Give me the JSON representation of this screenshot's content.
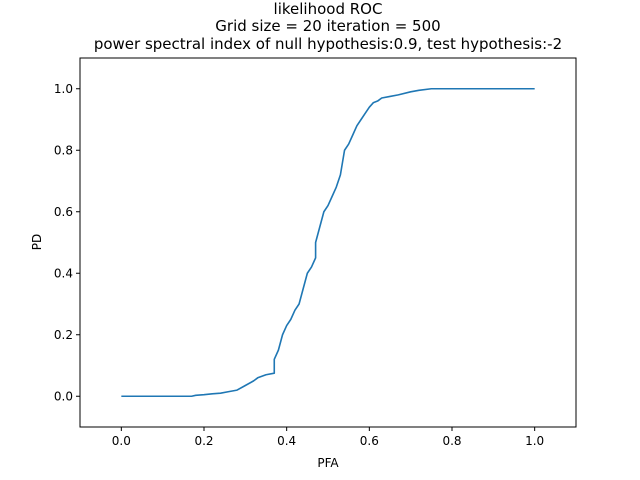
{
  "chart_data": {
    "type": "line",
    "title_lines": [
      "likelihood ROC",
      "Grid size = 20 iteration = 500",
      "power spectral index of null hypothesis:0.9, test hypothesis:-2"
    ],
    "xlabel": "PFA",
    "ylabel": "PD",
    "xlim": [
      -0.1,
      1.1
    ],
    "ylim": [
      -0.1,
      1.1
    ],
    "x_ticks": [
      0.0,
      0.2,
      0.4,
      0.6,
      0.8,
      1.0
    ],
    "y_ticks": [
      0.0,
      0.2,
      0.4,
      0.6,
      0.8,
      1.0
    ],
    "x_tick_labels": [
      "0.0",
      "0.2",
      "0.4",
      "0.6",
      "0.8",
      "1.0"
    ],
    "y_tick_labels": [
      "0.0",
      "0.2",
      "0.4",
      "0.6",
      "0.8",
      "1.0"
    ],
    "grid": false,
    "line_color": "#1f77b4",
    "series": [
      {
        "x": [
          0.0,
          0.17,
          0.18,
          0.2,
          0.22,
          0.24,
          0.26,
          0.28,
          0.3,
          0.32,
          0.33,
          0.35,
          0.37,
          0.37,
          0.38,
          0.39,
          0.4,
          0.41,
          0.42,
          0.43,
          0.44,
          0.45,
          0.46,
          0.47,
          0.47,
          0.48,
          0.49,
          0.5,
          0.51,
          0.52,
          0.53,
          0.54,
          0.55,
          0.56,
          0.57,
          0.58,
          0.59,
          0.6,
          0.61,
          0.62,
          0.63,
          0.65,
          0.67,
          0.7,
          0.72,
          0.75,
          0.8,
          1.0
        ],
        "y": [
          0.0,
          0.0,
          0.003,
          0.005,
          0.008,
          0.01,
          0.015,
          0.02,
          0.035,
          0.05,
          0.06,
          0.07,
          0.075,
          0.12,
          0.15,
          0.2,
          0.23,
          0.25,
          0.28,
          0.3,
          0.35,
          0.4,
          0.42,
          0.45,
          0.5,
          0.55,
          0.6,
          0.62,
          0.65,
          0.68,
          0.72,
          0.8,
          0.82,
          0.85,
          0.88,
          0.9,
          0.92,
          0.94,
          0.955,
          0.96,
          0.97,
          0.975,
          0.98,
          0.99,
          0.995,
          1.0,
          1.0,
          1.0
        ]
      }
    ]
  }
}
